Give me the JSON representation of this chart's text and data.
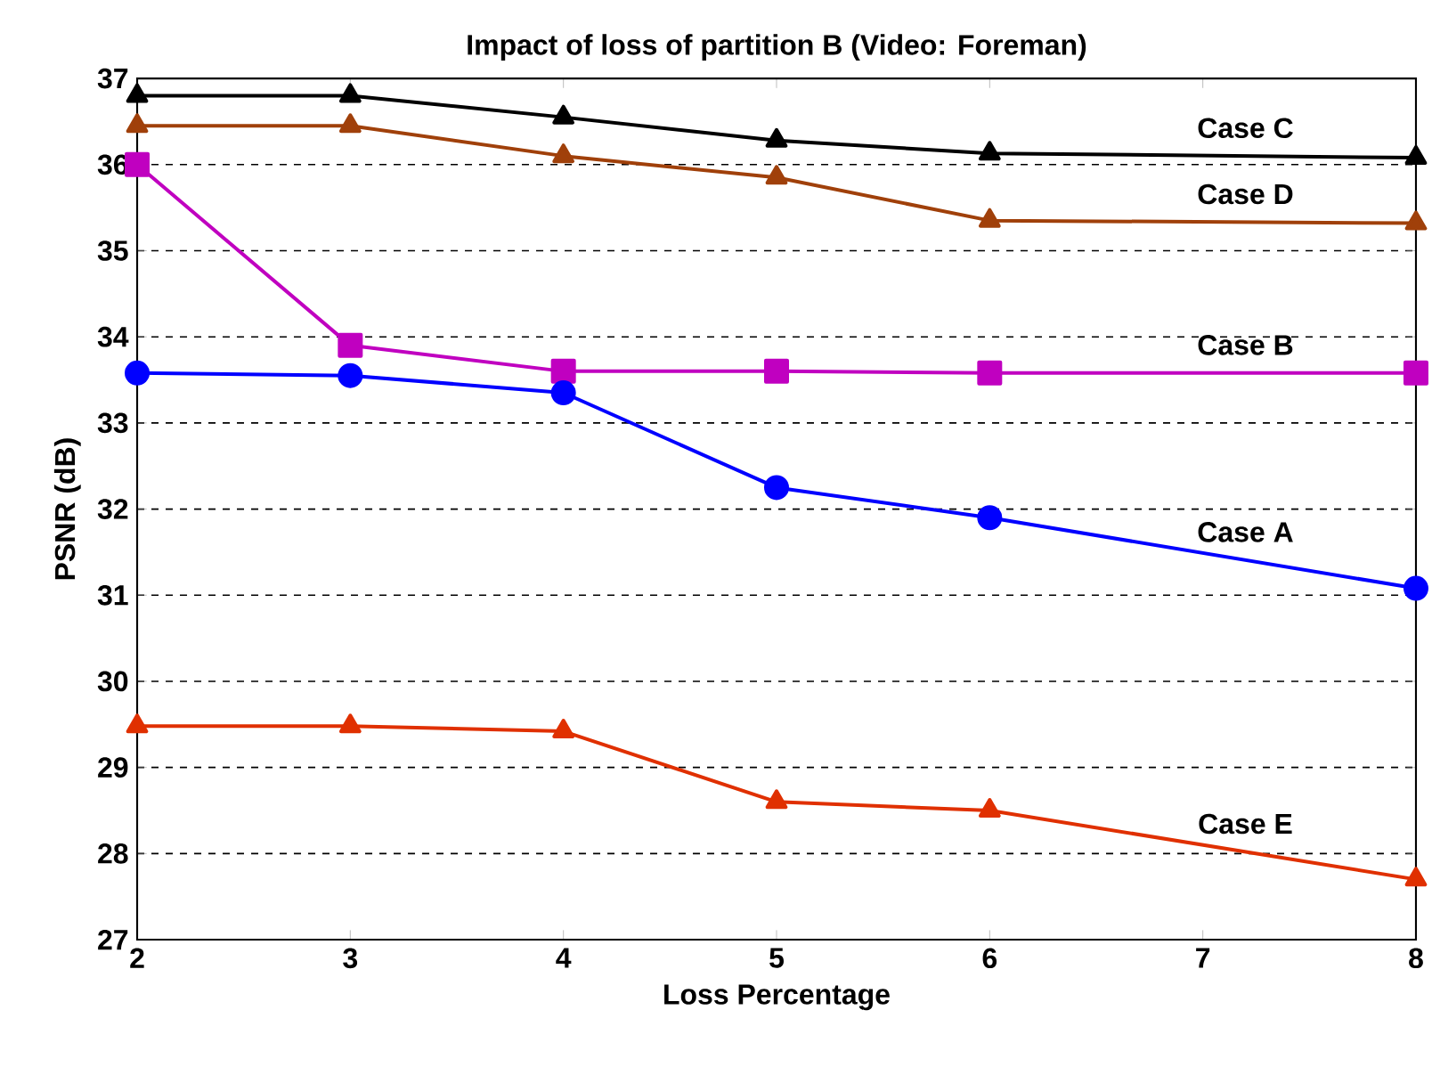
{
  "chart_data": {
    "type": "line",
    "title": "Impact of loss of partition B (Video: Foreman)",
    "xlabel": "Loss Percentage",
    "ylabel": "PSNR (dB)",
    "x": [
      2,
      3,
      4,
      5,
      6,
      8
    ],
    "series": [
      {
        "name": "Case C",
        "color": "#000000",
        "marker": "triangle",
        "values": [
          36.8,
          36.8,
          36.55,
          36.28,
          36.13,
          36.08
        ]
      },
      {
        "name": "Case D",
        "color": "#a0400a",
        "marker": "triangle",
        "values": [
          36.45,
          36.45,
          36.1,
          35.85,
          35.35,
          35.32
        ]
      },
      {
        "name": "Case B",
        "color": "#c000c0",
        "marker": "square",
        "values": [
          36.0,
          33.9,
          33.6,
          33.6,
          33.58,
          33.58
        ]
      },
      {
        "name": "Case A",
        "color": "#0000ff",
        "marker": "circle",
        "values": [
          33.58,
          33.55,
          33.35,
          32.25,
          31.9,
          31.08
        ]
      },
      {
        "name": "Case E",
        "color": "#e03000",
        "marker": "triangle",
        "values": [
          29.48,
          29.48,
          29.42,
          28.6,
          28.5,
          27.7
        ]
      }
    ],
    "xlim": [
      2,
      8
    ],
    "ylim": [
      27,
      37
    ],
    "xticks": [
      2,
      3,
      4,
      5,
      6,
      7,
      8
    ],
    "yticks": [
      27,
      28,
      29,
      30,
      31,
      32,
      33,
      34,
      35,
      36,
      37
    ],
    "grid": "y",
    "line_style": "solid"
  }
}
